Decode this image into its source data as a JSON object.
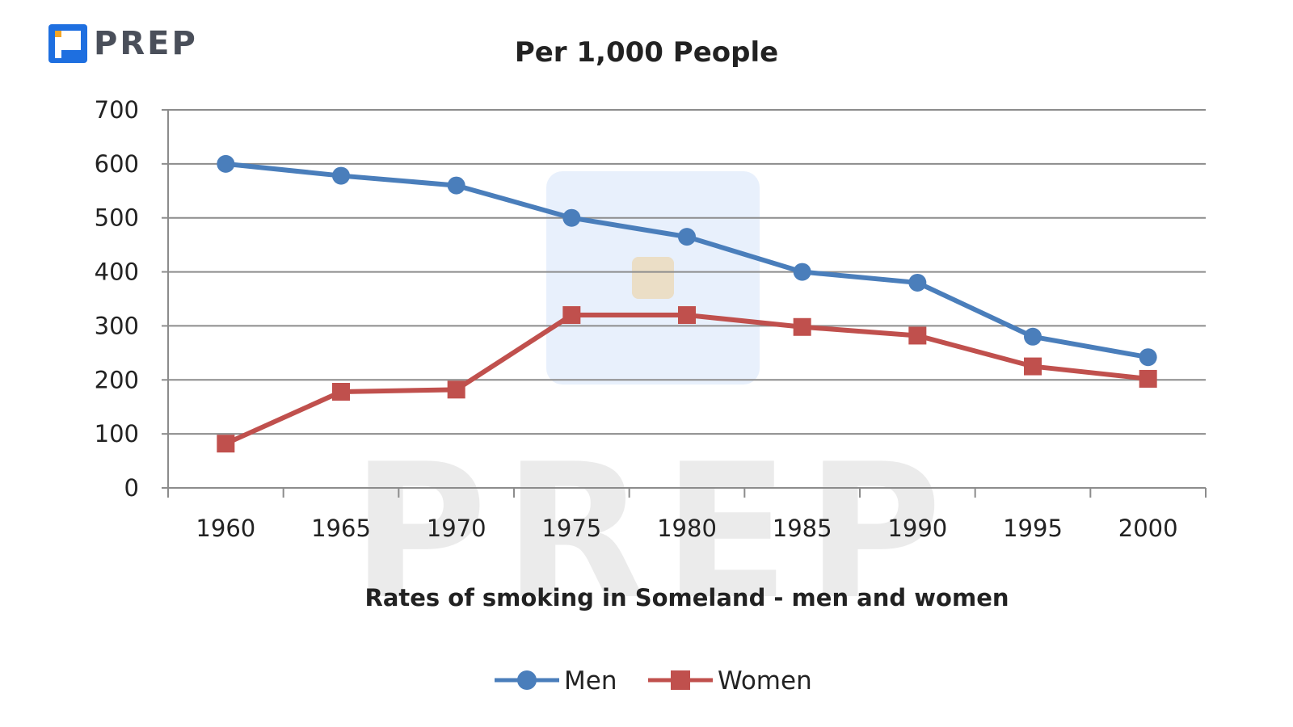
{
  "brand": {
    "name": "PREP",
    "color": "#1e6fe0",
    "accent": "#f5a623"
  },
  "watermark": {
    "text": "PREP"
  },
  "chart_data": {
    "type": "line",
    "title": "Per 1,000 People",
    "xlabel": "Rates of smoking  in Someland - men and women",
    "ylabel": "",
    "categories": [
      "1960",
      "1965",
      "1970",
      "1975",
      "1980",
      "1985",
      "1990",
      "1995",
      "2000"
    ],
    "series": [
      {
        "name": "Men",
        "color": "#4a7ebb",
        "marker": "circle",
        "values": [
          600,
          578,
          560,
          500,
          465,
          400,
          380,
          280,
          242
        ]
      },
      {
        "name": "Women",
        "color": "#c0504d",
        "marker": "square",
        "values": [
          82,
          178,
          182,
          320,
          320,
          298,
          282,
          225,
          202
        ]
      }
    ],
    "ylim": [
      0,
      700
    ],
    "yticks": [
      0,
      100,
      200,
      300,
      400,
      500,
      600,
      700
    ],
    "grid": true,
    "legend": "bottom"
  }
}
